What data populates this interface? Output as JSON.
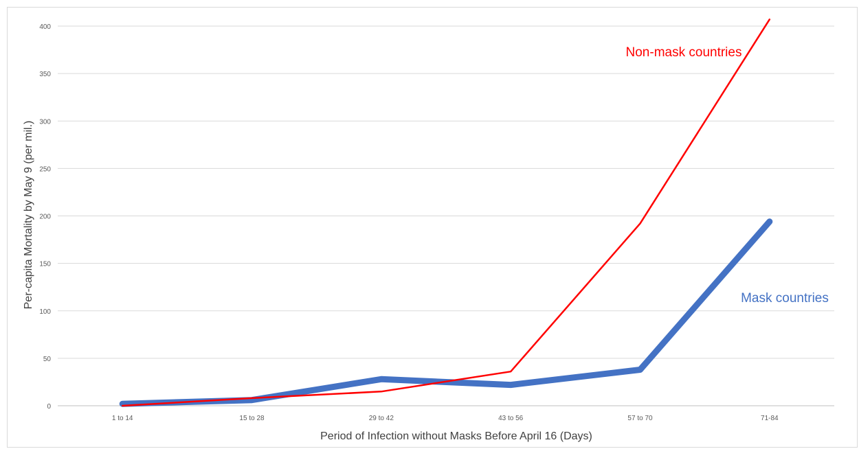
{
  "chart_data": {
    "type": "line",
    "title": "",
    "xlabel": "Period of Infection without Masks Before April 16 (Days)",
    "ylabel": "Per-capita Mortality by May 9 (per mil.)",
    "categories": [
      "1 to 14",
      "15 to 28",
      "29 to 42",
      "43 to 56",
      "57 to 70",
      "71-84"
    ],
    "ylim": [
      0,
      400
    ],
    "yticks": [
      0,
      50,
      100,
      150,
      200,
      250,
      300,
      350,
      400
    ],
    "grid": "horizontal",
    "legend": "none",
    "series": [
      {
        "name": "Mask countries",
        "values": [
          2,
          6,
          28,
          22,
          38,
          194
        ],
        "color": "#4472c4",
        "label_position": "right of last rising segment"
      },
      {
        "name": "Non-mask countries",
        "values": [
          0,
          8,
          15,
          36,
          192,
          407
        ],
        "color": "#ff0000",
        "label_position": "top right"
      }
    ]
  }
}
